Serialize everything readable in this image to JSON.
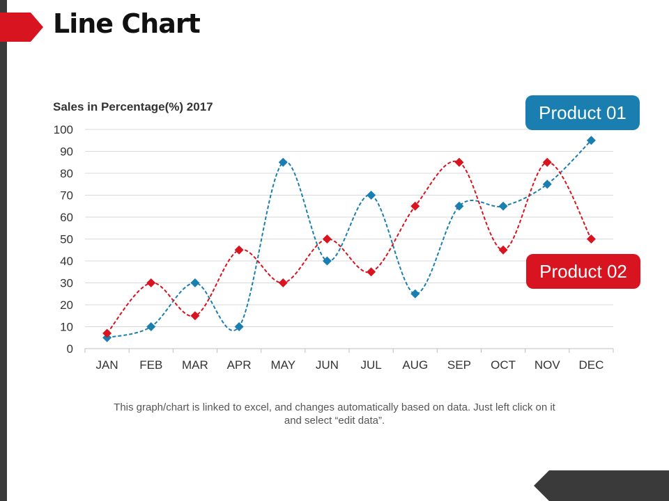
{
  "page": {
    "title": "Line Chart"
  },
  "colors": {
    "accent_red": "#d7141f",
    "product_01": "#1a7fb0",
    "product_02": "#d7141f",
    "dark": "#3a3a3a"
  },
  "callouts": {
    "product_01": "Product 01",
    "product_02": "Product 02"
  },
  "footnote": "This graph/chart is linked to excel, and changes automatically based on data. Just left click on it and select “edit data”.",
  "chart_data": {
    "type": "line",
    "title": "Sales in Percentage(%) 2017",
    "xlabel": "",
    "ylabel": "",
    "categories": [
      "JAN",
      "FEB",
      "MAR",
      "APR",
      "MAY",
      "JUN",
      "JUL",
      "AUG",
      "SEP",
      "OCT",
      "NOV",
      "DEC"
    ],
    "ylim": [
      0,
      100
    ],
    "yticks": [
      0,
      10,
      20,
      30,
      40,
      50,
      60,
      70,
      80,
      90,
      100
    ],
    "grid": true,
    "line_style": "dashed smoothed with diamond markers",
    "series": [
      {
        "name": "Product 01",
        "color": "#1a7fb0",
        "values": [
          5,
          10,
          30,
          10,
          85,
          40,
          70,
          25,
          65,
          65,
          75,
          95
        ]
      },
      {
        "name": "Product 02",
        "color": "#d7141f",
        "values": [
          7,
          30,
          15,
          45,
          30,
          50,
          35,
          65,
          85,
          45,
          85,
          50
        ]
      }
    ]
  }
}
